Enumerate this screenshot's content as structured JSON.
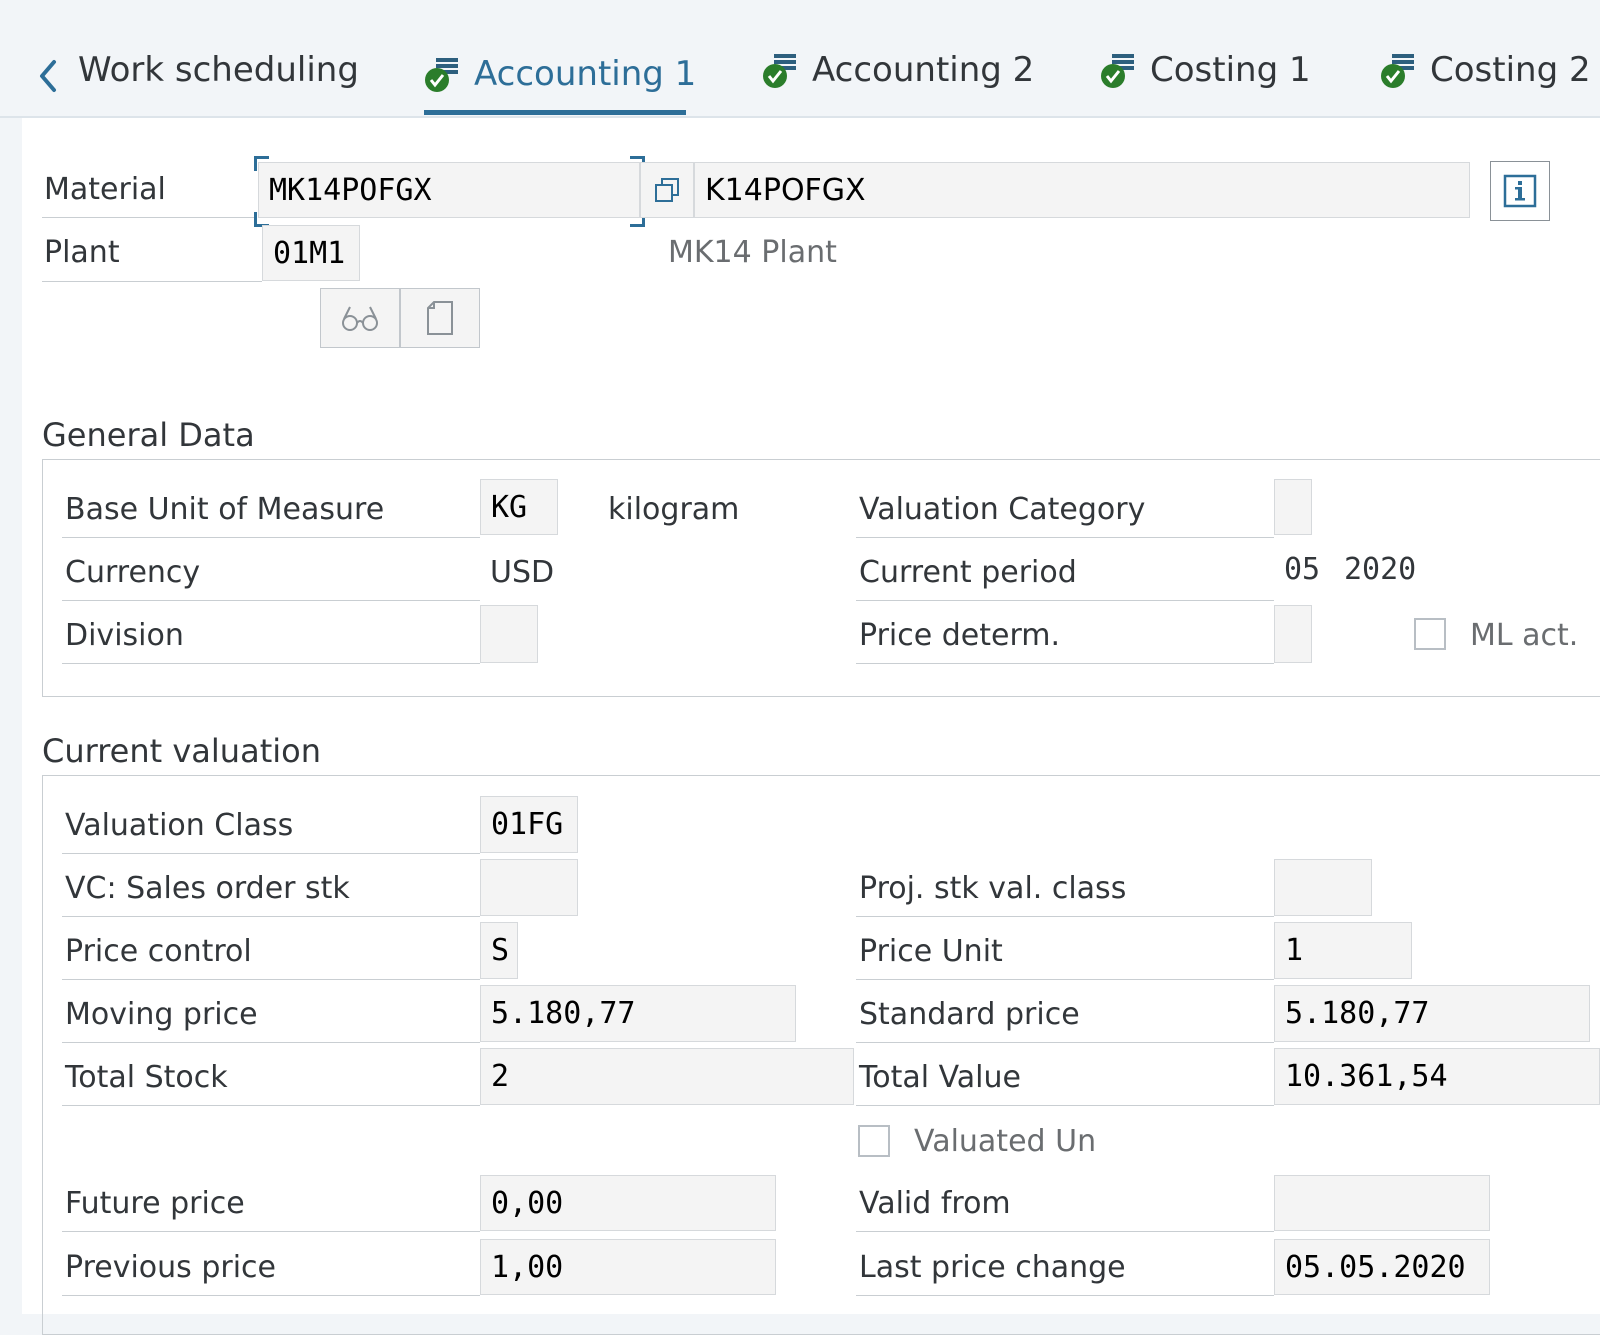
{
  "tabs": [
    {
      "label": "Work scheduling",
      "status_icon": "none"
    },
    {
      "label": "Accounting 1",
      "status_icon": "checked-stack-icon",
      "active": true
    },
    {
      "label": "Accounting 2",
      "status_icon": "checked-stack-icon"
    },
    {
      "label": "Costing 1",
      "status_icon": "checked-stack-icon"
    },
    {
      "label": "Costing 2",
      "status_icon": "checked-stack-icon"
    }
  ],
  "header": {
    "material_label": "Material",
    "material_value": "MK14POFGX",
    "material_desc": "K14POFGX",
    "plant_label": "Plant",
    "plant_value": "01M1",
    "plant_desc": "MK14 Plant"
  },
  "general": {
    "title": "General Data",
    "base_uom_label": "Base Unit of Measure",
    "base_uom_value": "KG",
    "base_uom_desc": "kilogram",
    "currency_label": "Currency",
    "currency_value": "USD",
    "division_label": "Division",
    "division_value": "",
    "valuation_category_label": "Valuation Category",
    "valuation_category_value": "",
    "current_period_label": "Current period",
    "current_period_month": "05",
    "current_period_year": "2020",
    "price_determ_label": "Price determ.",
    "price_determ_value": "",
    "ml_act_label": "ML act.",
    "ml_act_checked": false
  },
  "valuation": {
    "title": "Current valuation",
    "valuation_class_label": "Valuation Class",
    "valuation_class_value": "01FG",
    "vc_sales_label": "VC: Sales order stk",
    "vc_sales_value": "",
    "proj_stk_label": "Proj. stk val. class",
    "proj_stk_value": "",
    "price_control_label": "Price control",
    "price_control_value": "S",
    "price_unit_label": "Price Unit",
    "price_unit_value": "1",
    "moving_price_label": "Moving price",
    "moving_price_value": "5.180,77",
    "standard_price_label": "Standard price",
    "standard_price_value": "5.180,77",
    "total_stock_label": "Total Stock",
    "total_stock_value": "2",
    "total_value_label": "Total Value",
    "total_value_value": "10.361,54",
    "valuated_un_label": "Valuated Un",
    "valuated_un_checked": false,
    "future_price_label": "Future price",
    "future_price_value": "0,00",
    "valid_from_label": "Valid from",
    "valid_from_value": "",
    "previous_price_label": "Previous price",
    "previous_price_value": "1,00",
    "last_price_change_label": "Last price change",
    "last_price_change_value": "05.05.2020"
  },
  "colors": {
    "accent": "#2d6e98",
    "success": "#2b7d2b",
    "field_bg": "#f4f4f4"
  }
}
